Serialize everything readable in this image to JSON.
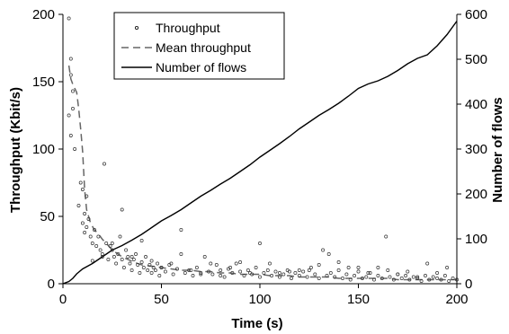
{
  "chart_data": {
    "type": "line",
    "xlabel": "Time (s)",
    "ylabel_left": "Throughput (Kbit/s)",
    "ylabel_right": "Number of flows",
    "xlim": [
      0,
      200
    ],
    "ylim_left": [
      0,
      200
    ],
    "ylim_right": [
      0,
      600
    ],
    "xticks": [
      "0",
      "50",
      "100",
      "150",
      "200"
    ],
    "yticks_left": [
      "0",
      "50",
      "100",
      "150",
      "200"
    ],
    "yticks_right": [
      "0",
      "100",
      "200",
      "300",
      "400",
      "500",
      "600"
    ],
    "grid": false,
    "legend_position": "top-center",
    "legend": {
      "throughput": "Throughput",
      "mean": "Mean throughput",
      "flows": "Number of flows"
    },
    "series": [
      {
        "name": "Number of flows",
        "axis": "right",
        "style": "solid",
        "x": [
          0,
          3,
          5,
          7,
          10,
          15,
          20,
          25,
          30,
          35,
          40,
          45,
          50,
          55,
          60,
          65,
          70,
          75,
          80,
          85,
          90,
          95,
          100,
          105,
          110,
          115,
          120,
          125,
          130,
          135,
          140,
          145,
          150,
          155,
          160,
          165,
          170,
          175,
          180,
          185,
          190,
          195,
          200
        ],
        "y": [
          0,
          5,
          12,
          22,
          33,
          45,
          60,
          75,
          85,
          97,
          110,
          125,
          140,
          152,
          165,
          180,
          195,
          208,
          222,
          235,
          250,
          265,
          282,
          297,
          312,
          328,
          345,
          360,
          375,
          388,
          402,
          418,
          435,
          445,
          452,
          462,
          475,
          490,
          502,
          510,
          530,
          555,
          585
        ]
      },
      {
        "name": "Mean throughput",
        "axis": "left",
        "style": "dashed",
        "x": [
          3,
          4,
          5,
          6,
          7,
          8,
          9,
          10,
          11,
          12,
          14,
          16,
          18,
          20,
          22,
          25,
          28,
          30,
          33,
          36,
          40,
          45,
          50,
          55,
          60,
          65,
          70,
          75,
          80,
          85,
          90,
          95,
          100,
          105,
          110,
          115,
          120,
          125,
          130,
          135,
          140,
          145,
          150,
          155,
          160,
          165,
          170,
          175,
          180,
          185,
          190,
          195,
          200
        ],
        "y": [
          162,
          152,
          148,
          145,
          142,
          130,
          115,
          98,
          70,
          55,
          45,
          40,
          37,
          33,
          30,
          25,
          22,
          20,
          18,
          16,
          14,
          13,
          12,
          11,
          10,
          10,
          9,
          9,
          8,
          8,
          7,
          7,
          7,
          6,
          6,
          6,
          5,
          5,
          5,
          5,
          4,
          4,
          4,
          4,
          4,
          4,
          3,
          3,
          3,
          3,
          3,
          3,
          3
        ]
      },
      {
        "name": "Throughput",
        "axis": "left",
        "style": "points",
        "x": [
          3,
          4,
          4,
          3,
          4,
          5,
          5,
          6,
          8,
          9,
          10,
          10,
          11,
          11,
          12,
          12,
          13,
          14,
          15,
          16,
          17,
          18,
          19,
          20,
          21,
          22,
          23,
          24,
          25,
          26,
          27,
          28,
          29,
          30,
          31,
          32,
          33,
          34,
          35,
          36,
          37,
          38,
          39,
          40,
          41,
          42,
          43,
          44,
          45,
          46,
          47,
          48,
          49,
          50,
          52,
          54,
          56,
          58,
          60,
          62,
          64,
          66,
          68,
          70,
          72,
          74,
          76,
          78,
          80,
          82,
          84,
          86,
          88,
          90,
          92,
          94,
          96,
          98,
          100,
          102,
          104,
          106,
          108,
          110,
          112,
          114,
          116,
          118,
          120,
          122,
          124,
          126,
          128,
          130,
          132,
          134,
          136,
          138,
          140,
          142,
          144,
          146,
          148,
          150,
          152,
          154,
          156,
          158,
          160,
          162,
          164,
          166,
          168,
          170,
          172,
          174,
          176,
          178,
          180,
          182,
          184,
          186,
          188,
          190,
          192,
          194,
          196,
          198,
          200,
          15,
          25,
          35,
          45,
          55,
          65,
          75,
          85,
          95,
          105,
          115,
          125,
          135,
          145,
          155,
          165,
          175,
          185,
          195,
          20,
          30,
          40,
          50,
          60,
          70,
          80,
          90,
          100,
          110,
          120,
          130,
          140,
          150,
          160,
          170,
          180,
          190
        ],
        "y": [
          197,
          167,
          155,
          125,
          110,
          143,
          130,
          100,
          58,
          75,
          70,
          45,
          52,
          38,
          65,
          42,
          48,
          35,
          30,
          40,
          28,
          35,
          25,
          22,
          89,
          30,
          18,
          28,
          25,
          20,
          15,
          22,
          35,
          18,
          12,
          25,
          20,
          15,
          10,
          18,
          22,
          14,
          8,
          16,
          12,
          20,
          10,
          14,
          8,
          12,
          10,
          15,
          6,
          12,
          9,
          14,
          7,
          11,
          40,
          8,
          10,
          6,
          12,
          8,
          20,
          9,
          7,
          14,
          10,
          5,
          11,
          8,
          15,
          9,
          6,
          10,
          7,
          12,
          5,
          8,
          10,
          6,
          9,
          5,
          7,
          10,
          4,
          8,
          6,
          9,
          5,
          12,
          7,
          4,
          25,
          6,
          8,
          5,
          10,
          4,
          7,
          3,
          6,
          9,
          4,
          5,
          8,
          3,
          6,
          4,
          35,
          5,
          3,
          7,
          4,
          6,
          3,
          5,
          4,
          2,
          6,
          3,
          5,
          4,
          3,
          6,
          2,
          4,
          3,
          17,
          30,
          20,
          17,
          15,
          10,
          15,
          12,
          8,
          15,
          9,
          10,
          22,
          12,
          8,
          10,
          9,
          15,
          12,
          20,
          55,
          32,
          12,
          22,
          7,
          6,
          16,
          30,
          8,
          10,
          14,
          16,
          12,
          12,
          7,
          5,
          8
        ]
      }
    ]
  }
}
